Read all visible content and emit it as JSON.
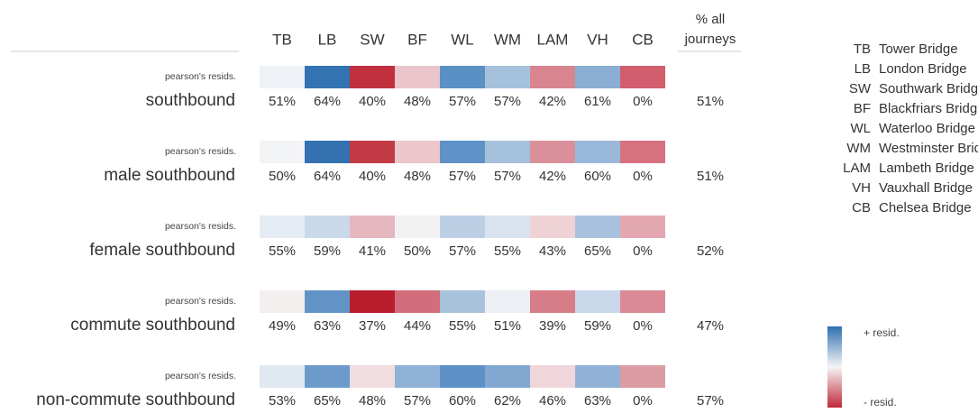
{
  "table": {
    "columns": [
      "TB",
      "LB",
      "SW",
      "BF",
      "WL",
      "WM",
      "LAM",
      "VH",
      "CB"
    ],
    "total_header": [
      "% all",
      "journeys"
    ],
    "residual_label": "pearson's resids.",
    "rows": [
      {
        "label": "southbound",
        "values": [
          "51%",
          "64%",
          "40%",
          "48%",
          "57%",
          "57%",
          "42%",
          "61%",
          "0%"
        ],
        "total": "51%",
        "colors": [
          "#eef2f7",
          "#3473b1",
          "#c0303f",
          "#eac5cb",
          "#5b90c4",
          "#a6c1dc",
          "#d98590",
          "#8aaed4",
          "#d25d6c"
        ]
      },
      {
        "label": "male southbound",
        "values": [
          "50%",
          "64%",
          "40%",
          "48%",
          "57%",
          "57%",
          "42%",
          "60%",
          "0%"
        ],
        "total": "51%",
        "colors": [
          "#f3f4f6",
          "#3371b0",
          "#c33a47",
          "#ebc7cc",
          "#5f92c6",
          "#a5c0db",
          "#d9909a",
          "#99b8d9",
          "#d6717e"
        ]
      },
      {
        "label": "female southbound",
        "values": [
          "55%",
          "59%",
          "41%",
          "50%",
          "57%",
          "55%",
          "43%",
          "65%",
          "0%"
        ],
        "total": "52%",
        "colors": [
          "#e4ebf3",
          "#c9d9ea",
          "#e6b7be",
          "#f3f2f3",
          "#bccfe5",
          "#d9e4f0",
          "#efd2d6",
          "#a8c2de",
          "#e2a7b0"
        ]
      },
      {
        "label": "commute southbound",
        "values": [
          "49%",
          "63%",
          "37%",
          "44%",
          "55%",
          "51%",
          "39%",
          "59%",
          "0%"
        ],
        "total": "47%",
        "colors": [
          "#f4efef",
          "#6193c6",
          "#b91d2e",
          "#d26e7b",
          "#a8c2dc",
          "#eceff4",
          "#d77d88",
          "#c8d7ea",
          "#db8a95"
        ]
      },
      {
        "label": "non-commute southbound",
        "values": [
          "53%",
          "65%",
          "48%",
          "57%",
          "60%",
          "62%",
          "46%",
          "63%",
          "0%"
        ],
        "total": "57%",
        "colors": [
          "#e0e8f1",
          "#6b9acb",
          "#f1dde0",
          "#90b2d6",
          "#5d91c6",
          "#80a8d1",
          "#f0d6da",
          "#91b2d6",
          "#dc9ca4"
        ]
      }
    ],
    "legend": [
      {
        "abbr": "TB",
        "name": "Tower Bridge"
      },
      {
        "abbr": "LB",
        "name": "London Bridge"
      },
      {
        "abbr": "SW",
        "name": "Southwark Bridge"
      },
      {
        "abbr": "BF",
        "name": "Blackfriars Bridge"
      },
      {
        "abbr": "WL",
        "name": "Waterloo Bridge"
      },
      {
        "abbr": "WM",
        "name": "Westminster Bridge"
      },
      {
        "abbr": "LAM",
        "name": "Lambeth Bridge"
      },
      {
        "abbr": "VH",
        "name": "Vauxhall Bridge"
      },
      {
        "abbr": "CB",
        "name": "Chelsea Bridge"
      }
    ],
    "scale": {
      "plus": "+ resid.",
      "minus": "- resid."
    }
  }
}
